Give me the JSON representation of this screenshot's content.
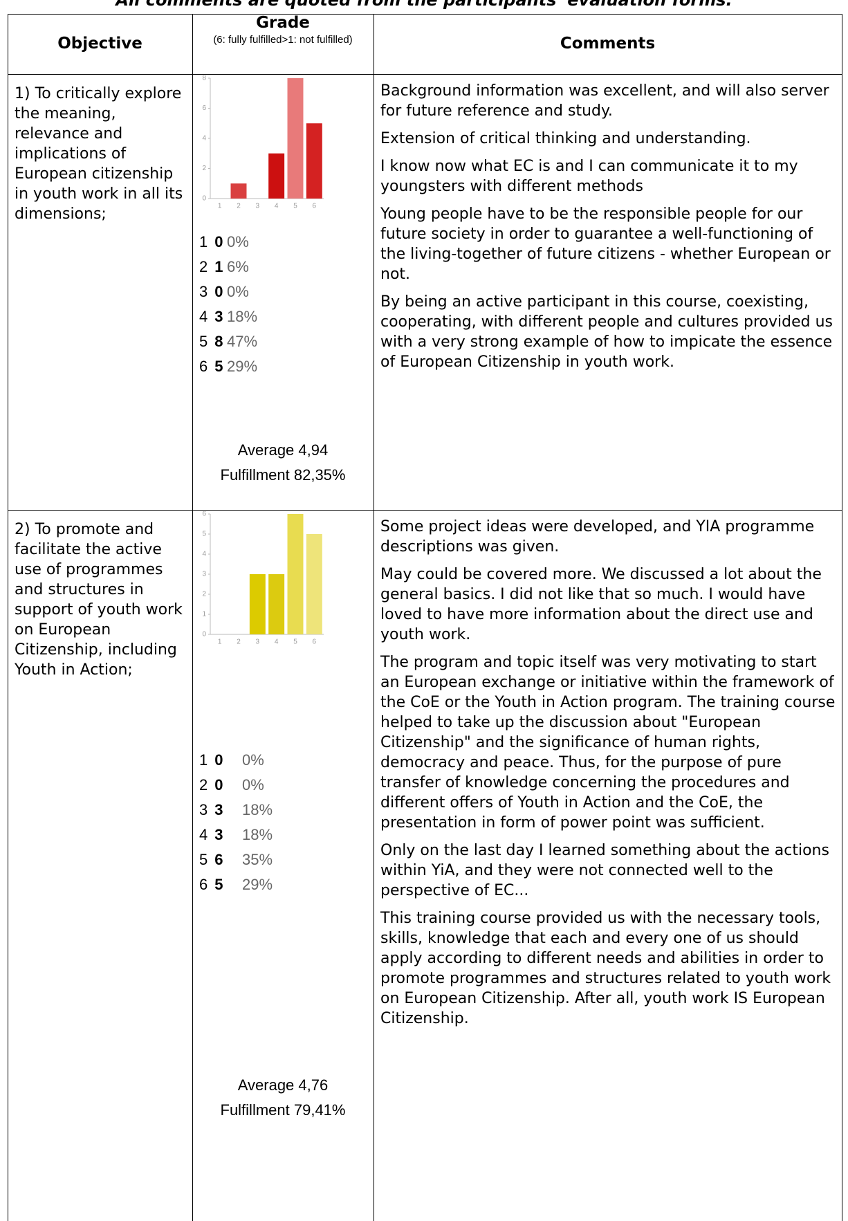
{
  "note": "All comments are quoted from the participants' evaluation forms.",
  "chart_data": [
    {
      "type": "bar",
      "categories": [
        1,
        2,
        3,
        4,
        5,
        6
      ],
      "values": [
        0,
        1,
        0,
        3,
        8,
        5
      ],
      "colors": [
        "#d42a2a",
        "#d94040",
        "#d42a2a",
        "#cc1010",
        "#e87a7a",
        "#d42222"
      ],
      "ylim": [
        0,
        8
      ],
      "yticks": [
        0,
        2,
        4,
        6,
        8
      ]
    },
    {
      "type": "bar",
      "categories": [
        1,
        2,
        3,
        4,
        5,
        6
      ],
      "values": [
        0,
        0,
        3,
        3,
        6,
        5
      ],
      "colors": [
        "#dcc800",
        "#dcc800",
        "#dccb00",
        "#dccb10",
        "#e8dc50",
        "#eee47a"
      ],
      "ylim": [
        0,
        6
      ],
      "yticks": [
        0,
        1,
        2,
        3,
        4,
        5,
        6
      ]
    }
  ],
  "table": {
    "headers": {
      "objective": "Objective",
      "grade": "Grade",
      "grade_note": "(6: fully fulfilled>1: not fulfilled)",
      "comments": "Comments"
    },
    "rows": [
      {
        "objective": "1) To critically explore the meaning, relevance and implications of European citizenship in youth work in all its dimensions;",
        "percent_labels": [
          "0%",
          "6%",
          "0%",
          "18%",
          "47%",
          "29%"
        ],
        "average": "Average 4,94",
        "fulfillment": "Fulfillment 82,35%",
        "comments": [
          "Background information was excellent, and will also server for future reference and study.",
          "Extension of critical thinking and understanding.",
          "I know now what EC is and I can communicate it to my youngsters with different methods",
          "Young people have to be the responsible people for our future society in order to guarantee a well-functioning of the living-together of future citizens - whether European or not.",
          "By being an active participant in this course, coexisting, cooperating, with different people and cultures provided us with a very strong example of how to impicate the essence of European Citizenship in youth work."
        ]
      },
      {
        "objective": "2) To promote and facilitate the active use of programmes and structures in support of youth work on European Citizenship, including Youth in Action;",
        "percent_labels": [
          "0%",
          "0%",
          "18%",
          "18%",
          "35%",
          "29%"
        ],
        "average": "Average 4,76",
        "fulfillment": "Fulfillment 79,41%",
        "comments": [
          "Some project ideas were developed, and YIA programme descriptions was given.",
          "May could be covered more. We discussed a lot about the general basics. I did not like that so much. I would have loved to have more information about the direct use and youth work.",
          "The program and topic itself was very motivating to start an European exchange or initiative within the framework of the CoE or the Youth in Action program. The training course helped to take up the discussion about \"European Citizenship\" and the significance of human rights, democracy and peace. Thus, for the purpose of pure transfer of knowledge concerning the procedures and different offers of Youth in Action and the CoE, the presentation in form of power point was sufficient.",
          "Only on the last day I learned something about the actions within YiA, and they were not connected well to the perspective of EC...",
          "This training course provided us with the necessary tools, skills, knowledge that each and every one of us should apply according to different needs and abilities in order to promote programmes and structures related to youth work on European Citizenship. After all, youth work IS European Citizenship."
        ]
      }
    ]
  }
}
